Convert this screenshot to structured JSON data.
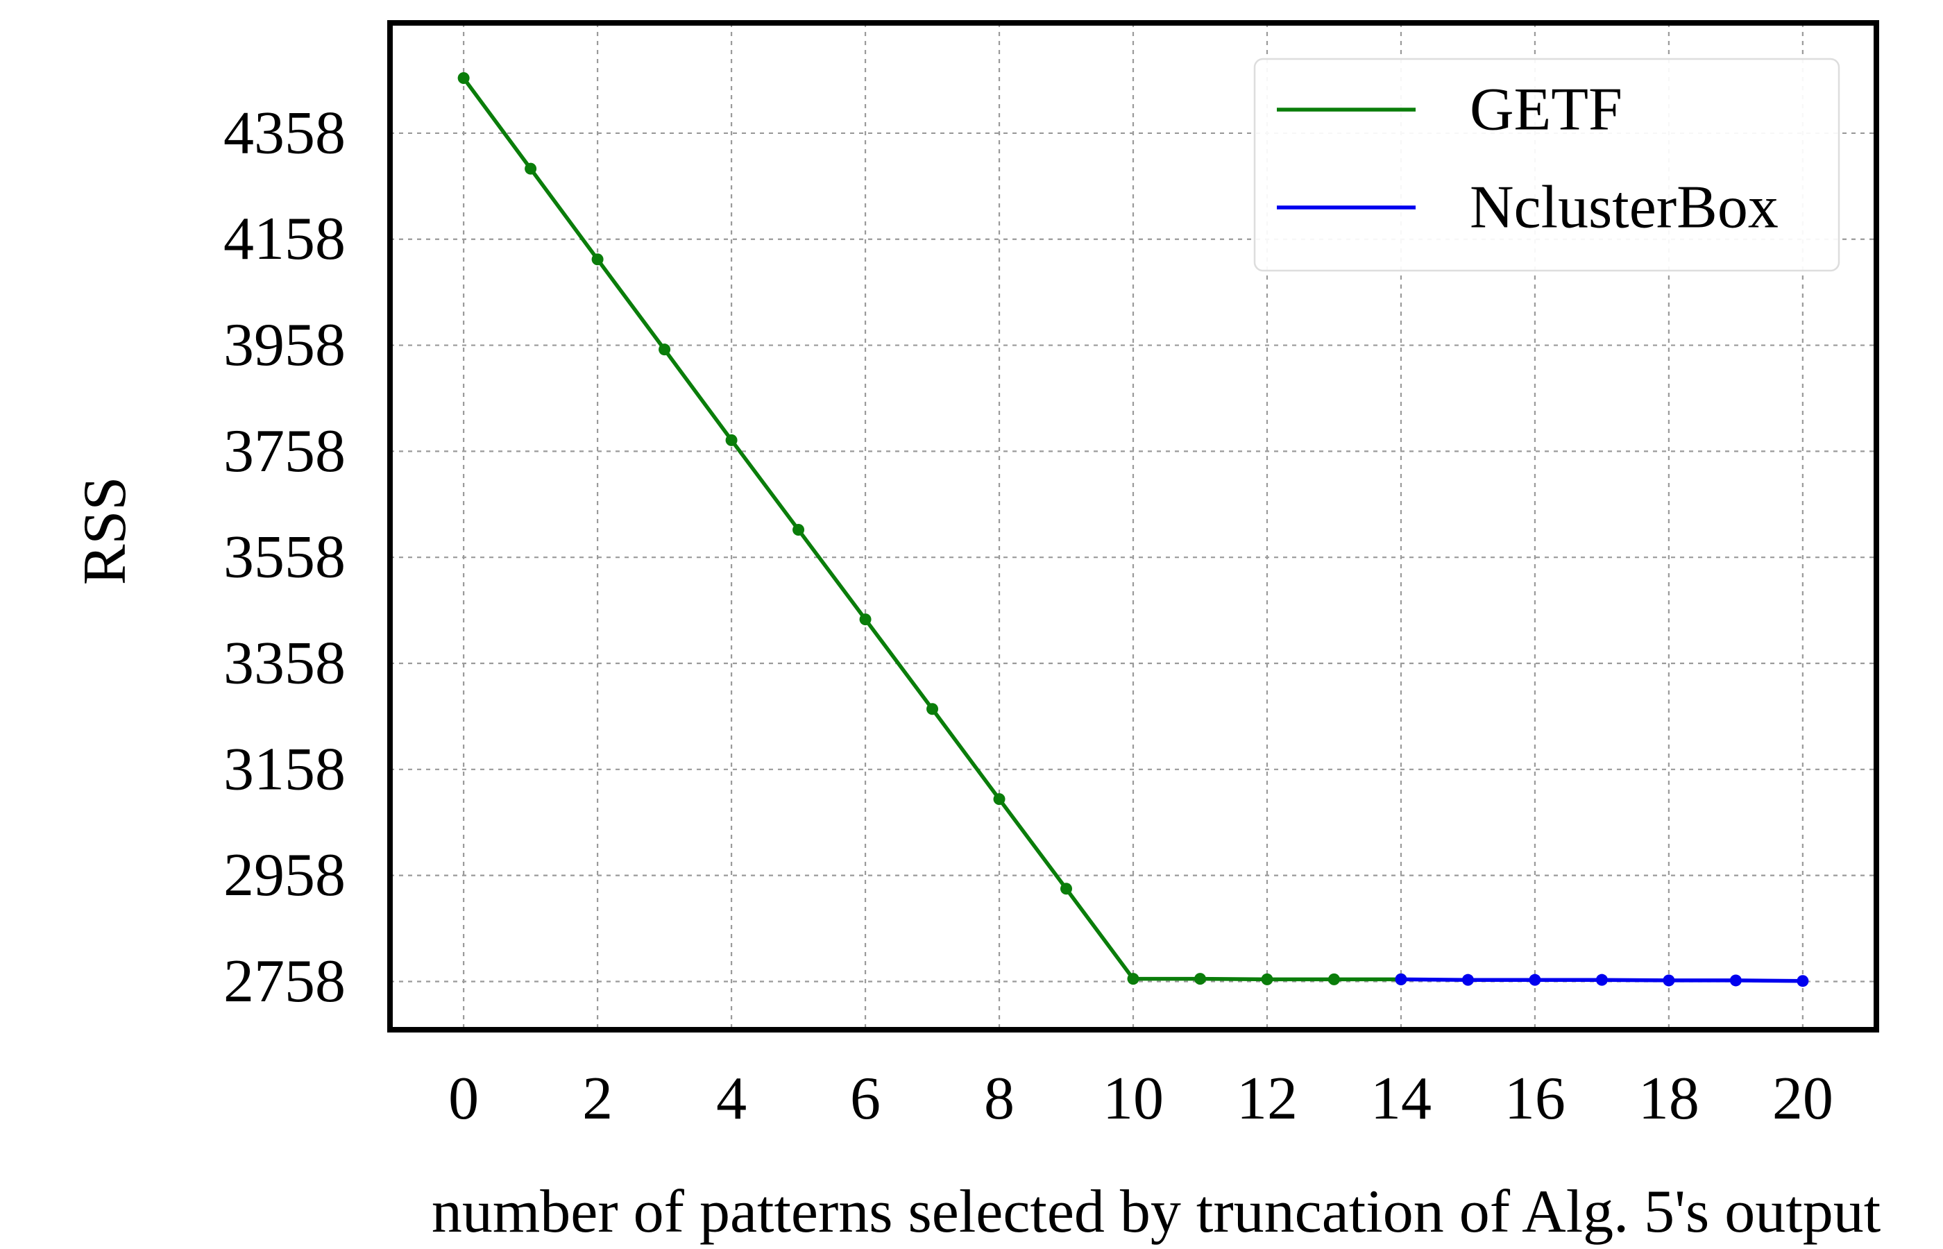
{
  "chart_data": {
    "type": "line",
    "xlabel": "number of patterns selected by truncation of Alg. 5's output",
    "ylabel": "RSS",
    "xlim": [
      -1.1,
      21.1
    ],
    "ylim": [
      2667,
      4566
    ],
    "xticks": [
      0,
      2,
      4,
      6,
      8,
      10,
      12,
      14,
      16,
      18,
      20
    ],
    "yticks": [
      2758,
      2958,
      3158,
      3358,
      3558,
      3758,
      3958,
      4158,
      4358
    ],
    "grid": true,
    "legend_position": "top-right",
    "series": [
      {
        "name": "GETF",
        "color": "#0a7d0a",
        "x": [
          0,
          1,
          2,
          3,
          4,
          5,
          6,
          7,
          8,
          9,
          10,
          11,
          12,
          13,
          14
        ],
        "y": [
          4462,
          4291,
          4120,
          3950,
          3779,
          3610,
          3441,
          3272,
          3102,
          2933,
          2763,
          2763,
          2762,
          2762,
          2762
        ]
      },
      {
        "name": "NclusterBox",
        "color": "#0000ee",
        "x": [
          14,
          15,
          16,
          17,
          18,
          19,
          20
        ],
        "y": [
          2762,
          2761,
          2761,
          2761,
          2760,
          2760,
          2759
        ]
      }
    ]
  }
}
